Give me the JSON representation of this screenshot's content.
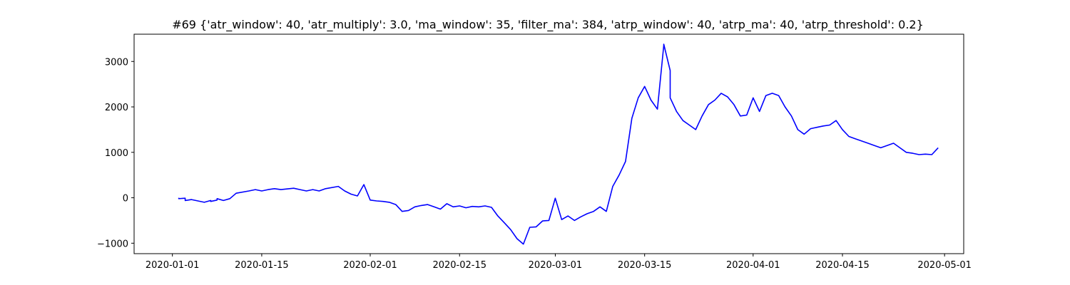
{
  "chart_data": {
    "type": "line",
    "title": "#69 {'atr_window': 40, 'atr_multiply': 3.0, 'ma_window': 35, 'filter_ma': 384, 'atrp_window': 40, 'atrp_ma': 40, 'atrp_threshold': 0.2}",
    "xlabel": "",
    "ylabel": "",
    "xlim": [
      "2019-12-26",
      "2020-05-04"
    ],
    "ylim": [
      -1230,
      3600
    ],
    "x_ticks": [
      "2020-01-01",
      "2020-01-15",
      "2020-02-01",
      "2020-02-15",
      "2020-03-01",
      "2020-03-15",
      "2020-04-01",
      "2020-04-15",
      "2020-05-01"
    ],
    "y_ticks": [
      -1000,
      0,
      1000,
      2000,
      3000
    ],
    "grid": false,
    "series": [
      {
        "color": "#0000ff",
        "x": [
          "2020-01-02",
          "2020-01-02",
          "2020-01-03",
          "2020-01-03",
          "2020-01-04",
          "2020-01-06",
          "2020-01-07",
          "2020-01-07",
          "2020-01-08",
          "2020-01-08",
          "2020-01-09",
          "2020-01-10",
          "2020-01-11",
          "2020-01-13",
          "2020-01-14",
          "2020-01-15",
          "2020-01-16",
          "2020-01-17",
          "2020-01-18",
          "2020-01-20",
          "2020-01-21",
          "2020-01-22",
          "2020-01-23",
          "2020-01-24",
          "2020-01-25",
          "2020-01-27",
          "2020-01-28",
          "2020-01-29",
          "2020-01-30",
          "2020-01-31",
          "2020-02-01",
          "2020-02-02",
          "2020-02-03",
          "2020-02-04",
          "2020-02-05",
          "2020-02-06",
          "2020-02-07",
          "2020-02-08",
          "2020-02-09",
          "2020-02-10",
          "2020-02-11",
          "2020-02-12",
          "2020-02-13",
          "2020-02-14",
          "2020-02-15",
          "2020-02-16",
          "2020-02-17",
          "2020-02-18",
          "2020-02-19",
          "2020-02-20",
          "2020-02-21",
          "2020-02-22",
          "2020-02-23",
          "2020-02-24",
          "2020-02-25",
          "2020-02-26",
          "2020-02-27",
          "2020-02-28",
          "2020-02-29",
          "2020-03-01",
          "2020-03-02",
          "2020-03-03",
          "2020-03-04",
          "2020-03-05",
          "2020-03-06",
          "2020-03-07",
          "2020-03-08",
          "2020-03-09",
          "2020-03-10",
          "2020-03-11",
          "2020-03-12",
          "2020-03-13",
          "2020-03-14",
          "2020-03-15",
          "2020-03-16",
          "2020-03-17",
          "2020-03-18",
          "2020-03-18",
          "2020-03-19",
          "2020-03-19",
          "2020-03-20",
          "2020-03-21",
          "2020-03-22",
          "2020-03-23",
          "2020-03-24",
          "2020-03-25",
          "2020-03-26",
          "2020-03-27",
          "2020-03-28",
          "2020-03-29",
          "2020-03-30",
          "2020-03-31",
          "2020-04-01",
          "2020-04-02",
          "2020-04-03",
          "2020-04-04",
          "2020-04-05",
          "2020-04-06",
          "2020-04-07",
          "2020-04-08",
          "2020-04-09",
          "2020-04-10",
          "2020-04-11",
          "2020-04-12",
          "2020-04-13",
          "2020-04-14",
          "2020-04-15",
          "2020-04-16",
          "2020-04-17",
          "2020-04-18",
          "2020-04-19",
          "2020-04-20",
          "2020-04-21",
          "2020-04-22",
          "2020-04-23",
          "2020-04-24",
          "2020-04-25",
          "2020-04-26",
          "2020-04-27",
          "2020-04-28",
          "2020-04-29",
          "2020-04-30"
        ],
        "y": [
          0,
          -20,
          -10,
          -60,
          -40,
          -100,
          -60,
          -80,
          -50,
          -20,
          -60,
          -20,
          100,
          150,
          180,
          150,
          180,
          200,
          180,
          210,
          180,
          150,
          180,
          150,
          200,
          250,
          150,
          80,
          40,
          290,
          -50,
          -70,
          -80,
          -100,
          -150,
          -300,
          -280,
          -200,
          -170,
          -150,
          -200,
          -250,
          -130,
          -200,
          -180,
          -220,
          -190,
          -200,
          -180,
          -210,
          -400,
          -550,
          -700,
          -900,
          -1020,
          -650,
          -640,
          -510,
          -500,
          -10,
          -480,
          -400,
          -500,
          -420,
          -350,
          -300,
          -200,
          -300,
          250,
          500,
          800,
          1750,
          2200,
          2450,
          2150,
          1950,
          3350,
          3380,
          2800,
          2200,
          1900,
          1700,
          1600,
          1500,
          1800,
          2050,
          2150,
          2300,
          2220,
          2050,
          1800,
          1820,
          2200,
          1900,
          2250,
          2300,
          2250,
          2000,
          1800,
          1500,
          1400,
          1520,
          1550,
          1580,
          1600,
          1700,
          1500,
          1350,
          1300,
          1250,
          1200,
          1150,
          1100,
          1150,
          1200,
          1100,
          1000,
          980,
          950,
          960,
          950,
          1100
        ]
      }
    ]
  }
}
